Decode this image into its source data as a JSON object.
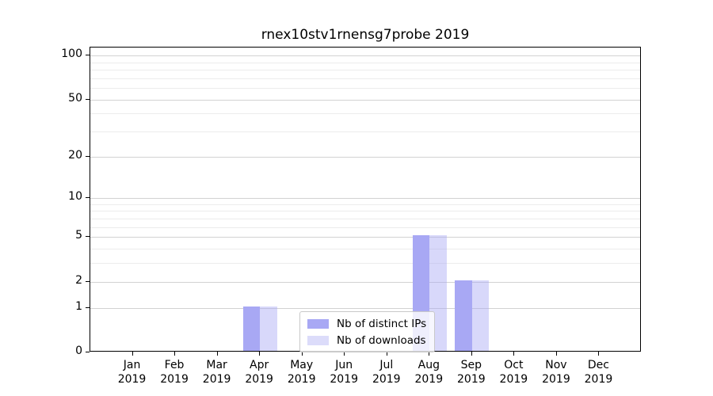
{
  "chart_data": {
    "type": "bar",
    "title": "rnex10stv1rnensg7probe 2019",
    "x": {
      "categories": [
        "Jan",
        "Feb",
        "Mar",
        "Apr",
        "May",
        "Jun",
        "Jul",
        "Aug",
        "Sep",
        "Oct",
        "Nov",
        "Dec"
      ],
      "year_line": "2019"
    },
    "series": [
      {
        "name": "Nb of distinct IPs",
        "fill": "#a8a8f4",
        "swatch": "#a8a8f4",
        "values": [
          0,
          0,
          0,
          1,
          0,
          0,
          0,
          5,
          2,
          0,
          0,
          0
        ]
      },
      {
        "name": "Nb of downloads",
        "fill": "rgba(168,168,244,0.45)",
        "swatch": "#dcdcfa",
        "values": [
          0,
          0,
          0,
          1,
          0,
          0,
          0,
          5,
          2,
          0,
          0,
          0
        ]
      }
    ],
    "y_axis": {
      "scale": "log1p",
      "major_ticks": [
        0,
        1,
        2,
        5,
        10,
        20,
        50,
        100
      ],
      "minor_ticks": [
        3,
        4,
        6,
        7,
        8,
        9,
        30,
        40,
        60,
        70,
        80,
        90
      ],
      "ylim": [
        0,
        113
      ]
    },
    "legend": {
      "position": "lower center"
    },
    "grid": true
  },
  "colors": {
    "background": "#ffffff",
    "text": "#000000",
    "spine": "#000000",
    "grid_major": "#d2d2d2",
    "grid_minor": "#ececec",
    "legend_border": "#c9c9c9"
  }
}
